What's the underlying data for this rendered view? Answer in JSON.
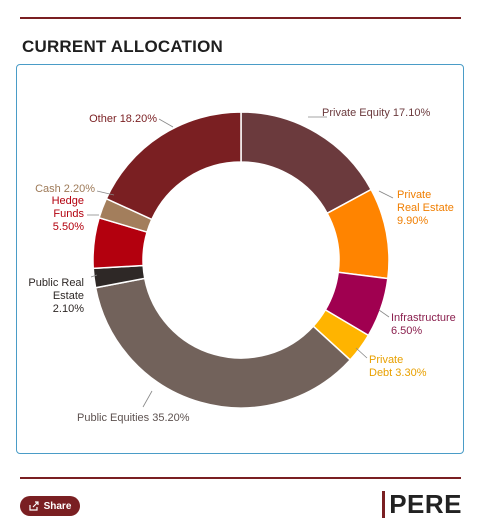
{
  "header": {
    "title": "CURRENT ALLOCATION"
  },
  "footer": {
    "share_label": "Share",
    "logo_text": "PERE"
  },
  "chart_data": {
    "type": "pie",
    "donut": true,
    "unit": "%",
    "slices": [
      {
        "name": "Private Equity",
        "value": 17.1,
        "label": "Private Equity 17.10%",
        "color": "#6b3a3d",
        "label_color": "#6b3a3d"
      },
      {
        "name": "Private Real Estate",
        "value": 9.9,
        "label": "Private Real Estate 9.90%",
        "color": "#ff8400",
        "label_color": "#f07e00"
      },
      {
        "name": "Infrastructure",
        "value": 6.5,
        "label": "Infrastructure 6.50%",
        "color": "#a00050",
        "label_color": "#8a1f4e"
      },
      {
        "name": "Private Debt",
        "value": 3.3,
        "label": "Private Debt 3.30%",
        "color": "#ffb400",
        "label_color": "#e8a000"
      },
      {
        "name": "Public Equities",
        "value": 35.2,
        "label": "Public Equities 35.20%",
        "color": "#72625b",
        "label_color": "#5d5250"
      },
      {
        "name": "Public Real Estate",
        "value": 2.1,
        "label": "Public Real Estate 2.10%",
        "color": "#2e2826",
        "label_color": "#2e2826"
      },
      {
        "name": "Hedge Funds",
        "value": 5.5,
        "label": "Hedge Funds 5.50%",
        "color": "#b3000e",
        "label_color": "#b3000e"
      },
      {
        "name": "Cash",
        "value": 2.2,
        "label": "Cash 2.20%",
        "color": "#a37e5c",
        "label_color": "#9e7a58"
      },
      {
        "name": "Other",
        "value": 18.2,
        "label": "Other 18.20%",
        "color": "#7a1f22",
        "label_color": "#7a1f22"
      }
    ]
  }
}
